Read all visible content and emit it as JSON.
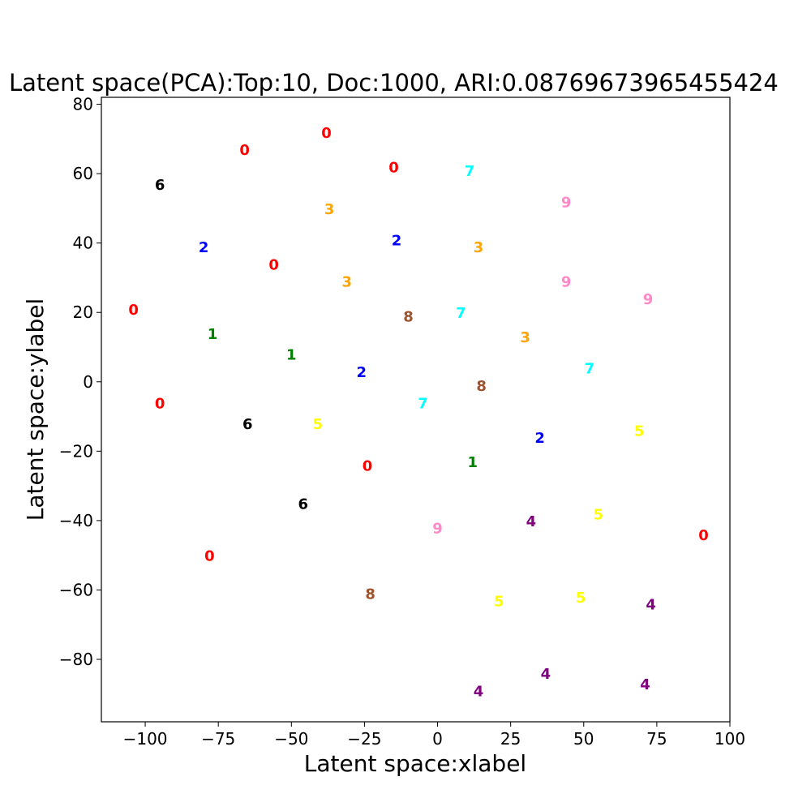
{
  "chart_data": {
    "type": "scatter",
    "title": "Latent space(PCA):Top:10, Doc:1000, ARI:0.08769673965455424",
    "xlabel": "Latent space:xlabel",
    "ylabel": "Latent space:ylabel",
    "xlim": [
      -115,
      100
    ],
    "ylim": [
      -98,
      82
    ],
    "xticks": [
      -100,
      -75,
      -50,
      -25,
      0,
      25,
      50,
      75,
      100
    ],
    "xtick_labels": [
      "−100",
      "−75",
      "−50",
      "−25",
      "0",
      "25",
      "50",
      "75",
      "100"
    ],
    "yticks": [
      -80,
      -60,
      -40,
      -20,
      0,
      20,
      40,
      60,
      80
    ],
    "ytick_labels": [
      "−80",
      "−60",
      "−40",
      "−20",
      "0",
      "20",
      "40",
      "60",
      "80"
    ],
    "grid": false,
    "label_colors": {
      "0": "#ff0000",
      "1": "#008000",
      "2": "#0000ff",
      "3": "#ffa500",
      "4": "#800080",
      "5": "#ffff00",
      "6": "#000000",
      "7": "#00ffff",
      "8": "#a0522d",
      "9": "#ff88c8"
    },
    "points": [
      {
        "label": "0",
        "x": -38,
        "y": 72
      },
      {
        "label": "0",
        "x": -66,
        "y": 67
      },
      {
        "label": "0",
        "x": -15,
        "y": 62
      },
      {
        "label": "0",
        "x": -56,
        "y": 34
      },
      {
        "label": "0",
        "x": -104,
        "y": 21
      },
      {
        "label": "0",
        "x": -95,
        "y": -6
      },
      {
        "label": "0",
        "x": -24,
        "y": -24
      },
      {
        "label": "0",
        "x": -78,
        "y": -50
      },
      {
        "label": "0",
        "x": 91,
        "y": -44
      },
      {
        "label": "1",
        "x": -77,
        "y": 14
      },
      {
        "label": "1",
        "x": -50,
        "y": 8
      },
      {
        "label": "1",
        "x": 12,
        "y": -23
      },
      {
        "label": "2",
        "x": -80,
        "y": 39
      },
      {
        "label": "2",
        "x": -14,
        "y": 41
      },
      {
        "label": "2",
        "x": -26,
        "y": 3
      },
      {
        "label": "2",
        "x": 35,
        "y": -16
      },
      {
        "label": "3",
        "x": -37,
        "y": 50
      },
      {
        "label": "3",
        "x": 14,
        "y": 39
      },
      {
        "label": "3",
        "x": -31,
        "y": 29
      },
      {
        "label": "3",
        "x": 30,
        "y": 13
      },
      {
        "label": "4",
        "x": 32,
        "y": -40
      },
      {
        "label": "4",
        "x": 73,
        "y": -64
      },
      {
        "label": "4",
        "x": 37,
        "y": -84
      },
      {
        "label": "4",
        "x": 14,
        "y": -89
      },
      {
        "label": "4",
        "x": 71,
        "y": -87
      },
      {
        "label": "5",
        "x": -41,
        "y": -12
      },
      {
        "label": "5",
        "x": 69,
        "y": -14
      },
      {
        "label": "5",
        "x": 55,
        "y": -38
      },
      {
        "label": "5",
        "x": 21,
        "y": -63
      },
      {
        "label": "5",
        "x": 49,
        "y": -62
      },
      {
        "label": "6",
        "x": -95,
        "y": 57
      },
      {
        "label": "6",
        "x": -65,
        "y": -12
      },
      {
        "label": "6",
        "x": -46,
        "y": -35
      },
      {
        "label": "7",
        "x": 11,
        "y": 61
      },
      {
        "label": "7",
        "x": 8,
        "y": 20
      },
      {
        "label": "7",
        "x": 52,
        "y": 4
      },
      {
        "label": "7",
        "x": -5,
        "y": -6
      },
      {
        "label": "8",
        "x": -10,
        "y": 19
      },
      {
        "label": "8",
        "x": 15,
        "y": -1
      },
      {
        "label": "8",
        "x": -23,
        "y": -61
      },
      {
        "label": "9",
        "x": 44,
        "y": 52
      },
      {
        "label": "9",
        "x": 44,
        "y": 29
      },
      {
        "label": "9",
        "x": 72,
        "y": 24
      },
      {
        "label": "9",
        "x": 0,
        "y": -42
      }
    ]
  }
}
